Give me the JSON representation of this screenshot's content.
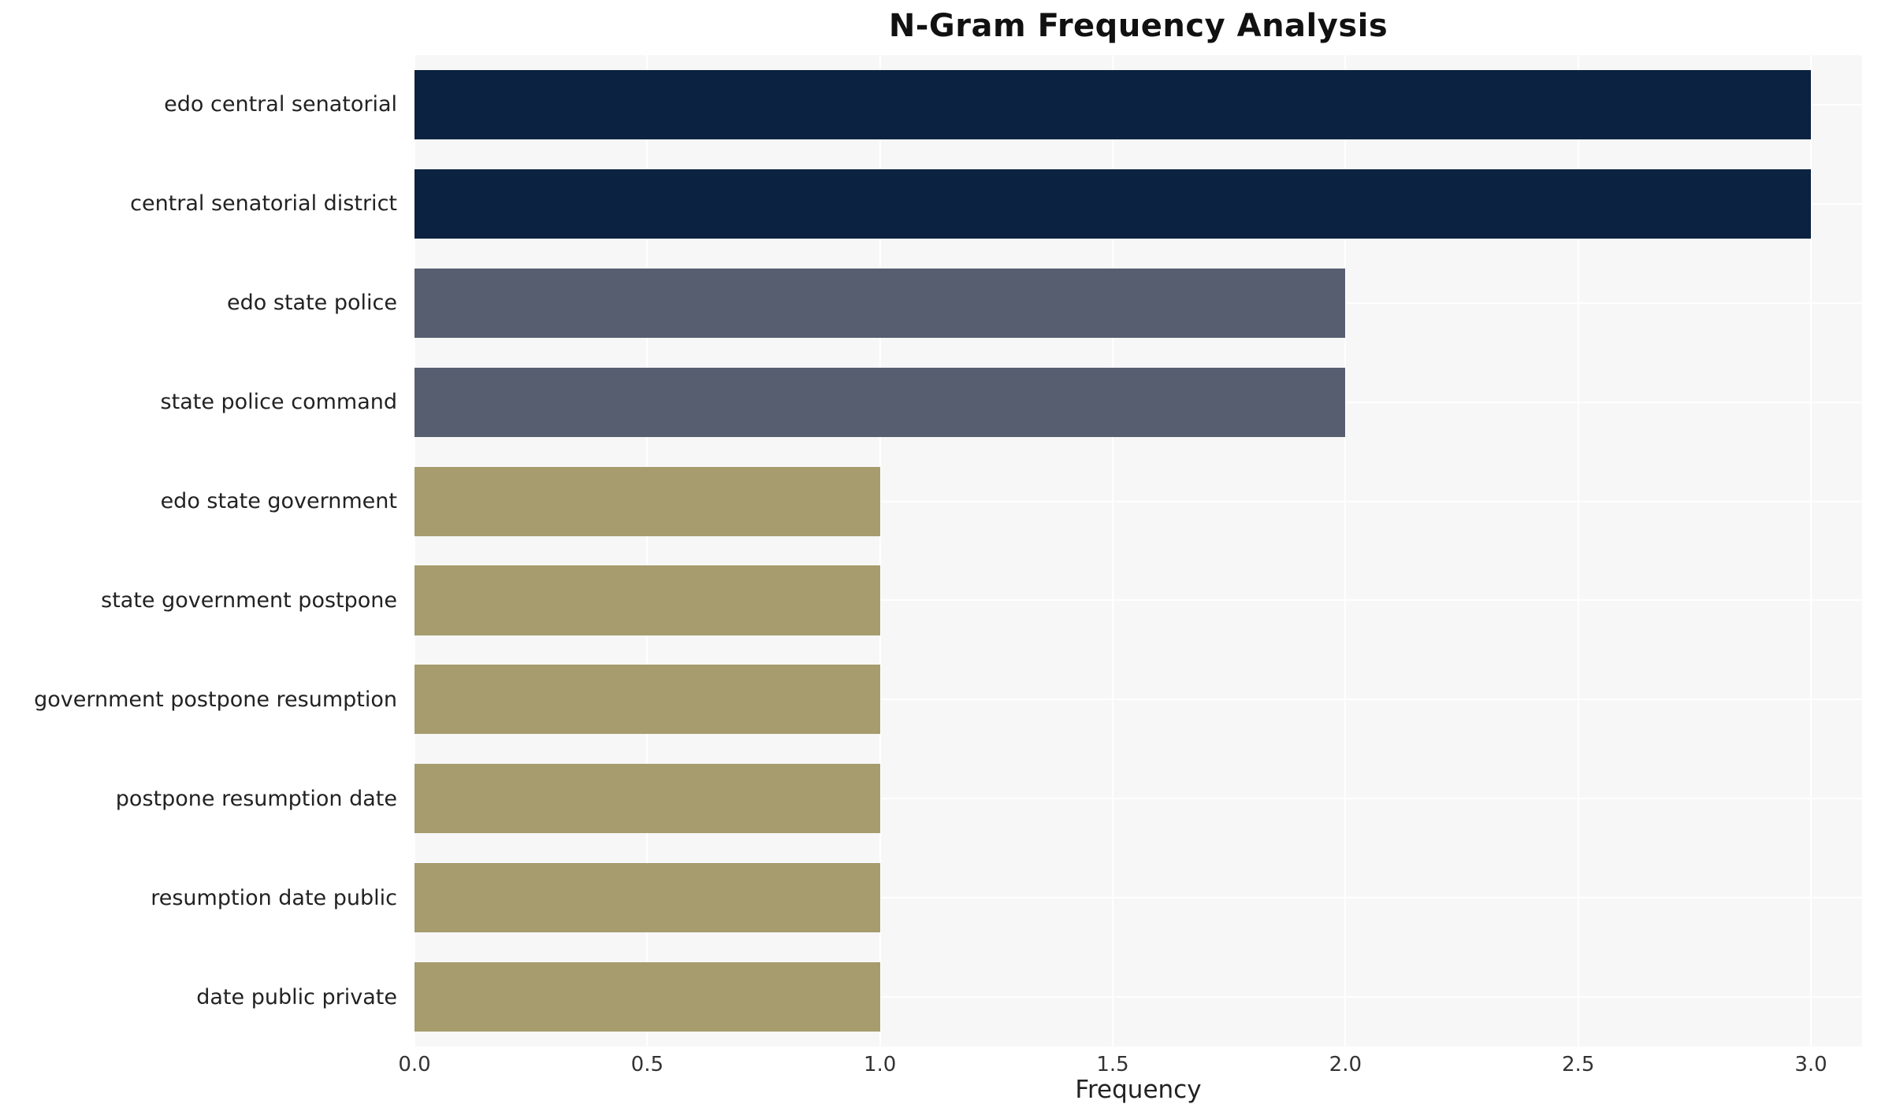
{
  "chart_data": {
    "type": "bar",
    "orientation": "horizontal",
    "title": "N-Gram Frequency Analysis",
    "xlabel": "Frequency",
    "ylabel": "",
    "categories": [
      "edo central senatorial",
      "central senatorial district",
      "edo state police",
      "state police command",
      "edo state government",
      "state government postpone",
      "government postpone resumption",
      "postpone resumption date",
      "resumption date public",
      "date public private"
    ],
    "values": [
      3,
      3,
      2,
      2,
      1,
      1,
      1,
      1,
      1,
      1
    ],
    "bar_colors": [
      "#0b2240",
      "#0b2240",
      "#575e70",
      "#575e70",
      "#a69c6e",
      "#a69c6e",
      "#a69c6e",
      "#a69c6e",
      "#a69c6e",
      "#a69c6e"
    ],
    "xlim": [
      0,
      3.11
    ],
    "xticks": [
      0,
      0.5,
      1,
      1.5,
      2,
      2.5,
      3
    ],
    "xtick_labels": [
      "0.0",
      "0.5",
      "1.0",
      "1.5",
      "2.0",
      "2.5",
      "3.0"
    ],
    "grid": true,
    "plot_background": "#f7f7f7",
    "grid_color": "#ffffff",
    "legend": "none"
  }
}
